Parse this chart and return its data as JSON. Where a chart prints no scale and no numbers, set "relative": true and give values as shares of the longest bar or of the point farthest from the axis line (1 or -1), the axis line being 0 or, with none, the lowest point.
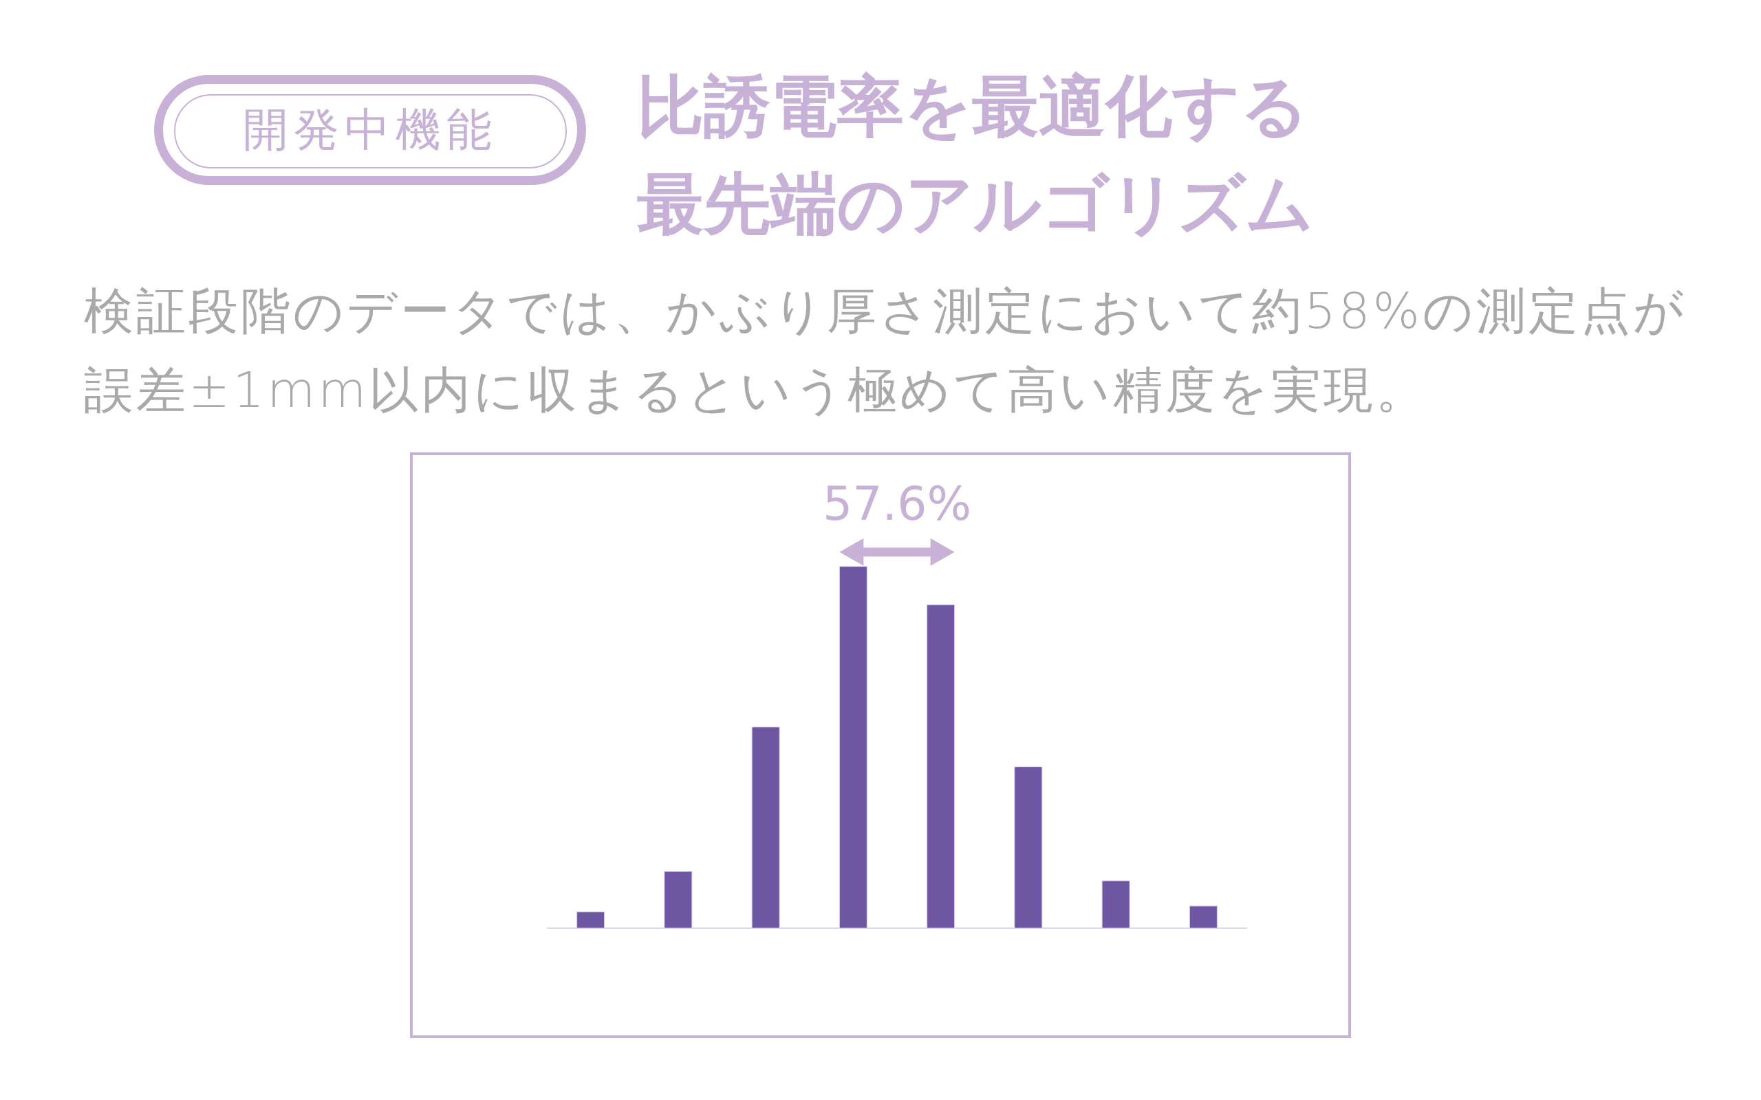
{
  "chart_data": {
    "type": "bar",
    "title": "比誘電率を最適化する最先端のアルゴリズム",
    "subtitle": "検証段階のデータでは、かぶり厚さ測定において約58%の測定点が誤差±1mm以内に収まるという極めて高い精度を実現。",
    "annotations": [
      "開発中機能",
      "57.6%"
    ],
    "categories": [
      null,
      null,
      null,
      null,
      null,
      null,
      null,
      null
    ],
    "values": [
      0.045,
      0.157,
      0.556,
      1,
      0.894,
      0.446,
      0.131,
      0.061
    ],
    "color": "#6e56a2",
    "relative": true
  }
}
